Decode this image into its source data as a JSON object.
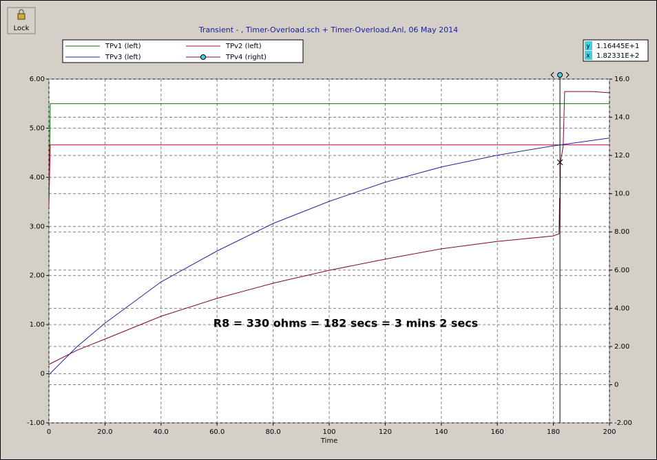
{
  "toolbar": {
    "lock": "Lock"
  },
  "chart_data": {
    "type": "line",
    "title": "Transient - ,    Timer-Overload.sch + Timer-Overload.Anl,   06 May 2014",
    "x_label": "Time",
    "annotation": "R8 = 330 ohms = 182 secs = 3 mins 2 secs",
    "xlim": [
      0,
      200
    ],
    "xticks": [
      0,
      {
        "value": 20,
        "label": "20.0"
      },
      {
        "value": 40,
        "label": "40.0"
      },
      {
        "value": 60,
        "label": "60.0"
      },
      {
        "value": 80,
        "label": "80.0"
      },
      100,
      120,
      140,
      160,
      180,
      200
    ],
    "ylim": [
      -1,
      6
    ],
    "yticks": [
      {
        "value": -1,
        "label": "-1.00"
      },
      0,
      {
        "value": 1,
        "label": "1.00"
      },
      {
        "value": 2,
        "label": "2.00"
      },
      {
        "value": 3,
        "label": "3.00"
      },
      {
        "value": 4,
        "label": "4.00"
      },
      {
        "value": 5,
        "label": "5.00"
      },
      {
        "value": 6,
        "label": "6.00"
      }
    ],
    "y2lim": [
      -2,
      16
    ],
    "y2ticks": [
      {
        "value": -2,
        "label": "-2.00"
      },
      0,
      {
        "value": 2,
        "label": "2.00"
      },
      {
        "value": 4,
        "label": "4.00"
      },
      {
        "value": 6,
        "label": "6.00"
      },
      {
        "value": 8,
        "label": "8.00"
      },
      {
        "value": 10,
        "label": "10.0"
      },
      {
        "value": 12,
        "label": "12.0"
      },
      {
        "value": 14,
        "label": "14.0"
      },
      {
        "value": 16,
        "label": "16.0"
      }
    ],
    "grid": true,
    "series": [
      {
        "name": "TPv1 (left)",
        "color": "#007000",
        "x": [
          0,
          0.5,
          200
        ],
        "values": [
          3.4,
          5.5,
          5.5
        ]
      },
      {
        "name": "TPv2 (left)",
        "color": "#c00030",
        "x": [
          0,
          0.5,
          200
        ],
        "values": [
          3.4,
          4.66,
          4.66
        ]
      },
      {
        "name": "TPv3 (left)",
        "color": "#2020a0",
        "x": [
          0,
          10,
          20,
          40,
          60,
          80,
          100,
          120,
          140,
          160,
          180,
          200
        ],
        "values": [
          -0.02,
          0.55,
          1.03,
          1.87,
          2.5,
          3.06,
          3.51,
          3.9,
          4.21,
          4.45,
          4.64,
          4.8
        ]
      },
      {
        "name": "TPv4 (right)",
        "color": "#800040",
        "axis": "y2",
        "x": [
          0,
          10,
          20,
          40,
          60,
          80,
          100,
          120,
          140,
          160,
          180,
          182,
          182.2,
          182.3,
          182.5,
          183.5,
          184,
          194,
          200
        ],
        "values": [
          1.06,
          1.8,
          2.39,
          3.58,
          4.52,
          5.31,
          5.99,
          6.57,
          7.11,
          7.5,
          7.79,
          7.9,
          9.77,
          8.2,
          11.64,
          12.5,
          15.35,
          15.35,
          15.28
        ]
      }
    ],
    "cursor": {
      "x": 182.331,
      "y": 11.6445,
      "y_name": "y",
      "x_name": "x",
      "y_label": "1.16445E+1",
      "x_label": "1.82331E+2"
    }
  }
}
